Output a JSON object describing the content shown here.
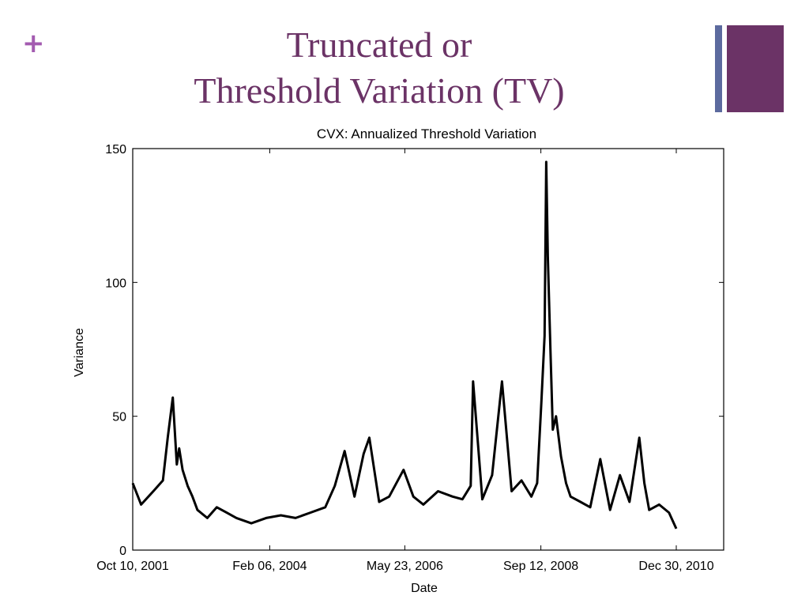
{
  "slide": {
    "plus_symbol": "+",
    "title_line1": "Truncated or",
    "title_line2": "Threshold Variation (TV)"
  },
  "colors": {
    "accent_purple": "#6b3366",
    "plus_purple": "#a35bb0",
    "deco_blue": "#5c6a9e",
    "line": "#000000"
  },
  "chart_data": {
    "type": "line",
    "title": "CVX: Annualized Threshold Variation",
    "xlabel": "Date",
    "ylabel": "Variance",
    "xlim": [
      "Oct 10, 2001",
      "Dec 30, 2010"
    ],
    "ylim": [
      0,
      150
    ],
    "x_ticks": [
      "Oct 10, 2001",
      "Feb 06, 2004",
      "May 23, 2006",
      "Sep 12, 2008",
      "Dec 30, 2010"
    ],
    "y_ticks": [
      0,
      50,
      100,
      150
    ],
    "grid": false,
    "series": [
      {
        "x": [
          "2001-10-10",
          "2001-12-01",
          "2002-02-15",
          "2002-04-15",
          "2002-05-15",
          "2002-06-15",
          "2002-07-10",
          "2002-07-25",
          "2002-08-15",
          "2002-09-15",
          "2002-10-15",
          "2002-11-15",
          "2003-01-15",
          "2003-03-15",
          "2003-05-15",
          "2003-07-15",
          "2003-10-15",
          "2004-01-15",
          "2004-04-15",
          "2004-07-15",
          "2004-10-15",
          "2005-01-15",
          "2005-03-15",
          "2005-05-15",
          "2005-07-15",
          "2005-09-10",
          "2005-10-15",
          "2005-12-15",
          "2006-02-15",
          "2006-05-15",
          "2006-07-15",
          "2006-09-15",
          "2006-12-15",
          "2007-03-15",
          "2007-05-15",
          "2007-07-05",
          "2007-07-20",
          "2007-09-15",
          "2007-11-15",
          "2008-01-15",
          "2008-03-15",
          "2008-05-15",
          "2008-07-15",
          "2008-08-20",
          "2008-09-15",
          "2008-10-05",
          "2008-10-15",
          "2008-10-25",
          "2008-11-10",
          "2008-11-25",
          "2008-12-15",
          "2009-01-15",
          "2009-02-15",
          "2009-03-15",
          "2009-05-15",
          "2009-07-15",
          "2009-09-15",
          "2009-11-15",
          "2010-01-15",
          "2010-03-15",
          "2010-05-15",
          "2010-06-15",
          "2010-07-15",
          "2010-09-15",
          "2010-11-15",
          "2010-12-30"
        ],
        "values": [
          25,
          17,
          22,
          26,
          42,
          57,
          32,
          38,
          30,
          24,
          20,
          15,
          12,
          16,
          14,
          12,
          10,
          12,
          13,
          12,
          14,
          16,
          24,
          37,
          20,
          36,
          42,
          18,
          20,
          30,
          20,
          17,
          22,
          20,
          19,
          24,
          63,
          19,
          28,
          63,
          22,
          26,
          20,
          25,
          55,
          80,
          145,
          110,
          75,
          45,
          50,
          35,
          25,
          20,
          18,
          16,
          34,
          15,
          28,
          18,
          42,
          25,
          15,
          17,
          14,
          8
        ]
      }
    ]
  }
}
